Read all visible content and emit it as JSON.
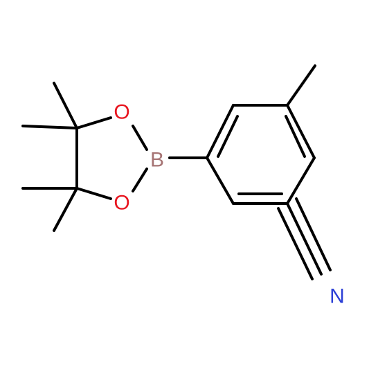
{
  "atoms": [
    {
      "label": "O"
    },
    {
      "label": "O"
    },
    {
      "label": "B"
    },
    {
      "label": "N"
    }
  ]
}
